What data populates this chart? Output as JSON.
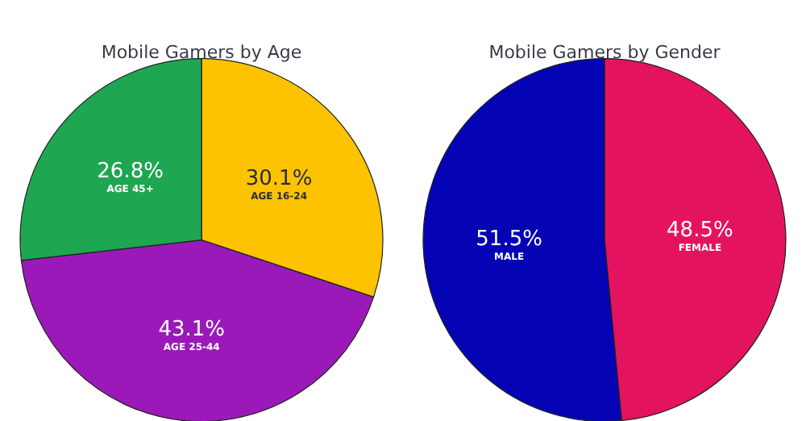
{
  "chart_data": [
    {
      "type": "pie",
      "title": "Mobile Gamers by Age",
      "categories": [
        "AGE 16-24",
        "AGE 25-44",
        "AGE 45+"
      ],
      "values": [
        30.1,
        43.1,
        26.8
      ],
      "value_labels": [
        "30.1%",
        "43.1%",
        "26.8%"
      ],
      "colors": [
        "#fdc300",
        "#9b19b8",
        "#1ea650"
      ]
    },
    {
      "type": "pie",
      "title": "Mobile Gamers by Gender",
      "categories": [
        "FEMALE",
        "MALE"
      ],
      "values": [
        48.5,
        51.5
      ],
      "value_labels": [
        "48.5%",
        "51.5%"
      ],
      "colors": [
        "#e3135f",
        "#0404b4"
      ]
    }
  ]
}
